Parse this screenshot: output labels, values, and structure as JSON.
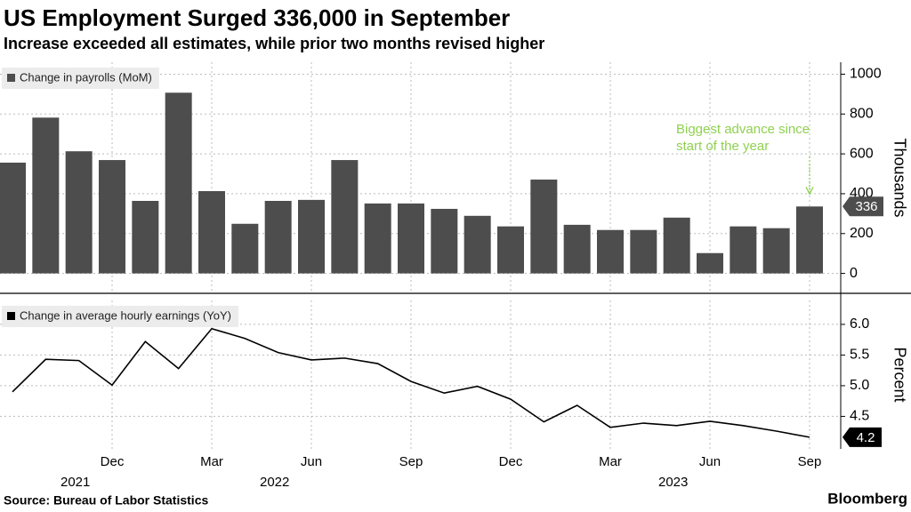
{
  "chart_data": {
    "type": "panels",
    "title": "US Employment Surged 336,000 in September",
    "subtitle": "Increase exceeded all estimates, while prior two months revised higher",
    "categories": [
      null,
      null,
      null,
      "Dec",
      null,
      null,
      "Mar",
      null,
      null,
      "Jun",
      null,
      null,
      "Sep",
      null,
      null,
      "Dec",
      null,
      null,
      "Mar",
      null,
      null,
      "Jun",
      null,
      null,
      "Sep"
    ],
    "year_labels": [
      null,
      null,
      null,
      "2021",
      null,
      null,
      null,
      null,
      null,
      "2022",
      null,
      null,
      null,
      null,
      null,
      null,
      null,
      null,
      null,
      null,
      null,
      "2023",
      null,
      null,
      null
    ],
    "source": "Source: Bureau of Labor Statistics",
    "brand": "Bloomberg",
    "panels": [
      {
        "type": "bar",
        "series": [
          {
            "name": "Change in payrolls (MoM)",
            "color": "#4d4d4d",
            "values": [
              556,
              782,
              613,
              569,
              364,
              907,
              413,
              249,
              364,
              369,
              569,
              351,
              351,
              324,
              289,
              236,
              471,
              244,
              218,
              218,
              280,
              102,
              236,
              227,
              336
            ]
          }
        ],
        "ylim": [
          -100,
          1060
        ],
        "yticks": [
          0,
          200,
          400,
          600,
          800,
          1000
        ],
        "ylabel": "Thousands",
        "grid": true,
        "annotation": {
          "lines": [
            "Biggest advance since",
            "start of the year"
          ],
          "color": "#8fd14f"
        }
      },
      {
        "type": "line",
        "series": [
          {
            "name": "Change in average hourly earnings (YoY)",
            "color": "#000000",
            "values": [
              4.9,
              5.43,
              5.41,
              5.01,
              5.72,
              5.28,
              5.93,
              5.77,
              5.54,
              5.42,
              5.45,
              5.36,
              5.07,
              4.88,
              4.99,
              4.78,
              4.41,
              4.68,
              4.32,
              4.39,
              4.35,
              4.42,
              4.35,
              4.26,
              4.16
            ],
            "value_labels": [
              null,
              null,
              null,
              null,
              null,
              null,
              null,
              null,
              null,
              null,
              null,
              null,
              null,
              null,
              null,
              null,
              null,
              null,
              null,
              null,
              null,
              null,
              null,
              null,
              "4.2"
            ]
          }
        ],
        "ylim": [
          3.97,
          6.39
        ],
        "yticks": [
          {
            "value": 6,
            "label": "6.0"
          },
          5.5,
          {
            "value": 5,
            "label": "5.0"
          },
          4.5
        ],
        "ylabel": "Percent",
        "grid": true
      }
    ]
  }
}
